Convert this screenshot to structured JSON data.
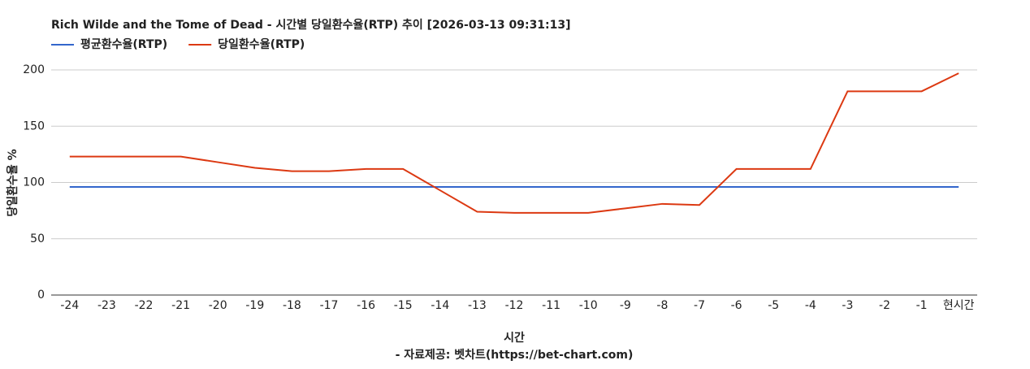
{
  "chart_data": {
    "type": "line",
    "title": "Rich Wilde and the Tome of Dead - 시간별 당일환수율(RTP) 추이 [2026-03-13 09:31:13]",
    "x_label": "시간",
    "y_label": "당일환수율 %",
    "footer": "- 자료제공: 벳차트(https://bet-chart.com)",
    "categories": [
      "-24",
      "-23",
      "-22",
      "-21",
      "-20",
      "-19",
      "-18",
      "-17",
      "-16",
      "-15",
      "-14",
      "-13",
      "-12",
      "-11",
      "-10",
      "-9",
      "-8",
      "-7",
      "-6",
      "-5",
      "-4",
      "-3",
      "-2",
      "-1",
      "현시간"
    ],
    "series": [
      {
        "name": "평균환수율(RTP)",
        "color": "#3366cc",
        "values": [
          96,
          96,
          96,
          96,
          96,
          96,
          96,
          96,
          96,
          96,
          96,
          96,
          96,
          96,
          96,
          96,
          96,
          96,
          96,
          96,
          96,
          96,
          96,
          96,
          96
        ]
      },
      {
        "name": "당일환수율(RTP)",
        "color": "#dc3912",
        "values": [
          123,
          123,
          123,
          123,
          118,
          113,
          110,
          110,
          112,
          112,
          93,
          74,
          73,
          73,
          73,
          77,
          81,
          80,
          112,
          112,
          112,
          181,
          181,
          181,
          197
        ]
      }
    ],
    "ylim": [
      0,
      200
    ],
    "yticks": [
      0,
      50,
      100,
      150,
      200
    ],
    "grid": true,
    "legend": "top-left"
  }
}
